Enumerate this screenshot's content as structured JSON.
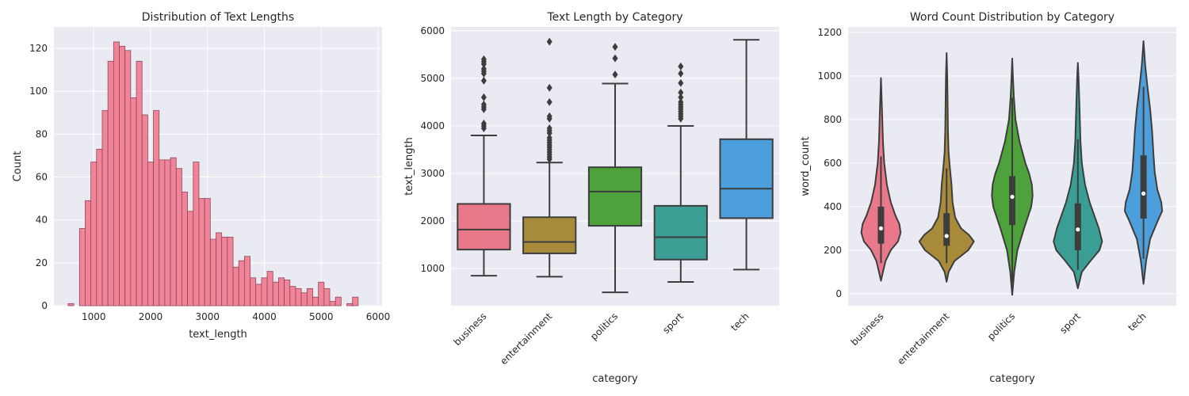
{
  "colors": {
    "background": "#eaeaf2",
    "grid": "#ffffff",
    "hist_fill": "#f2849a",
    "hist_edge": "#8a4a58",
    "box_edge": "#3d3d3d",
    "categories": [
      "#e8788a",
      "#a88a3b",
      "#4ea23c",
      "#3b9e95",
      "#4d9fdb"
    ]
  },
  "chart_data": [
    {
      "type": "histogram",
      "title": "Distribution of Text Lengths",
      "xlabel": "text_length",
      "ylabel": "Count",
      "xlim": [
        300,
        6070
      ],
      "ylim": [
        0,
        130
      ],
      "xticks": [
        1000,
        2000,
        3000,
        4000,
        5000,
        6000
      ],
      "yticks": [
        0,
        20,
        40,
        60,
        80,
        100,
        120
      ],
      "bin_start": 550,
      "bin_width": 100,
      "counts": [
        1,
        0,
        36,
        49,
        67,
        73,
        91,
        114,
        123,
        121,
        119,
        97,
        114,
        89,
        67,
        91,
        68,
        68,
        69,
        64,
        53,
        44,
        67,
        50,
        50,
        31,
        34,
        32,
        32,
        18,
        21,
        23,
        13,
        10,
        13,
        16,
        11,
        13,
        12,
        9,
        8,
        6,
        8,
        4,
        11,
        8,
        2,
        4,
        0,
        1,
        4
      ]
    },
    {
      "type": "box",
      "title": "Text Length by Category",
      "xlabel": "category",
      "ylabel": "text_length",
      "ylim": [
        220,
        6080
      ],
      "yticks": [
        1000,
        2000,
        3000,
        4000,
        5000,
        6000
      ],
      "categories": [
        "business",
        "entertainment",
        "politics",
        "sport",
        "tech"
      ],
      "boxes": [
        {
          "whislo": 850,
          "q1": 1400,
          "med": 1820,
          "q3": 2360,
          "whishi": 3800,
          "fliers": [
            3950,
            4000,
            4050,
            4350,
            4400,
            4450,
            4600,
            4950,
            5100,
            5150,
            5200,
            5300,
            5350,
            5400
          ]
        },
        {
          "whislo": 830,
          "q1": 1320,
          "med": 1560,
          "q3": 2080,
          "whishi": 3230,
          "fliers": [
            3300,
            3350,
            3400,
            3450,
            3500,
            3550,
            3600,
            3650,
            3700,
            3750,
            3850,
            3900,
            3950,
            4150,
            4200,
            4500,
            4800,
            5770
          ]
        },
        {
          "whislo": 500,
          "q1": 1900,
          "med": 2620,
          "q3": 3130,
          "whishi": 4890,
          "fliers": [
            5080,
            5420,
            5660
          ]
        },
        {
          "whislo": 720,
          "q1": 1190,
          "med": 1660,
          "q3": 2320,
          "whishi": 4000,
          "fliers": [
            4150,
            4200,
            4250,
            4300,
            4350,
            4400,
            4450,
            4500,
            4600,
            4700,
            4900,
            5100,
            5250
          ]
        },
        {
          "whislo": 980,
          "q1": 2060,
          "med": 2680,
          "q3": 3720,
          "whishi": 5810,
          "fliers": []
        }
      ]
    },
    {
      "type": "violin",
      "title": "Word Count Distribution by Category",
      "xlabel": "category",
      "ylabel": "word_count",
      "ylim": [
        -55,
        1225
      ],
      "yticks": [
        0,
        200,
        400,
        600,
        800,
        1000,
        1200
      ],
      "categories": [
        "business",
        "entertainment",
        "politics",
        "sport",
        "tech"
      ],
      "violins": [
        {
          "min": 60,
          "max": 990,
          "q1": 230,
          "med": 300,
          "q3": 400,
          "whislo": 140,
          "whishi": 630,
          "density": [
            [
              60,
              0.0
            ],
            [
              100,
              0.06
            ],
            [
              150,
              0.14
            ],
            [
              200,
              0.3
            ],
            [
              240,
              0.52
            ],
            [
              280,
              0.6
            ],
            [
              320,
              0.56
            ],
            [
              360,
              0.44
            ],
            [
              420,
              0.3
            ],
            [
              500,
              0.18
            ],
            [
              600,
              0.1
            ],
            [
              700,
              0.06
            ],
            [
              800,
              0.04
            ],
            [
              900,
              0.02
            ],
            [
              990,
              0.0
            ]
          ]
        },
        {
          "min": 55,
          "max": 1105,
          "q1": 220,
          "med": 265,
          "q3": 370,
          "whislo": 140,
          "whishi": 575,
          "density": [
            [
              55,
              0.0
            ],
            [
              100,
              0.06
            ],
            [
              150,
              0.24
            ],
            [
              200,
              0.66
            ],
            [
              240,
              0.83
            ],
            [
              270,
              0.68
            ],
            [
              300,
              0.44
            ],
            [
              350,
              0.26
            ],
            [
              420,
              0.18
            ],
            [
              500,
              0.15
            ],
            [
              580,
              0.1
            ],
            [
              650,
              0.06
            ],
            [
              750,
              0.04
            ],
            [
              900,
              0.03
            ],
            [
              1000,
              0.02
            ],
            [
              1105,
              0.0
            ]
          ]
        },
        {
          "min": -5,
          "max": 1080,
          "q1": 315,
          "med": 445,
          "q3": 540,
          "whislo": 50,
          "whishi": 900,
          "density": [
            [
              -5,
              0.0
            ],
            [
              100,
              0.06
            ],
            [
              200,
              0.16
            ],
            [
              300,
              0.36
            ],
            [
              400,
              0.58
            ],
            [
              450,
              0.62
            ],
            [
              500,
              0.6
            ],
            [
              550,
              0.52
            ],
            [
              600,
              0.4
            ],
            [
              700,
              0.22
            ],
            [
              800,
              0.1
            ],
            [
              900,
              0.05
            ],
            [
              1000,
              0.02
            ],
            [
              1080,
              0.0
            ]
          ]
        },
        {
          "min": 25,
          "max": 1060,
          "q1": 200,
          "med": 295,
          "q3": 415,
          "whislo": 110,
          "whishi": 710,
          "density": [
            [
              25,
              0.0
            ],
            [
              100,
              0.12
            ],
            [
              150,
              0.38
            ],
            [
              200,
              0.66
            ],
            [
              240,
              0.74
            ],
            [
              300,
              0.64
            ],
            [
              360,
              0.5
            ],
            [
              420,
              0.36
            ],
            [
              500,
              0.22
            ],
            [
              600,
              0.12
            ],
            [
              700,
              0.08
            ],
            [
              800,
              0.06
            ],
            [
              900,
              0.04
            ],
            [
              1000,
              0.02
            ],
            [
              1060,
              0.0
            ]
          ]
        },
        {
          "min": 45,
          "max": 1160,
          "q1": 345,
          "med": 460,
          "q3": 635,
          "whislo": 160,
          "whishi": 950,
          "density": [
            [
              45,
              0.0
            ],
            [
              150,
              0.08
            ],
            [
              250,
              0.2
            ],
            [
              330,
              0.42
            ],
            [
              380,
              0.57
            ],
            [
              420,
              0.54
            ],
            [
              480,
              0.42
            ],
            [
              560,
              0.34
            ],
            [
              650,
              0.3
            ],
            [
              750,
              0.26
            ],
            [
              850,
              0.2
            ],
            [
              950,
              0.12
            ],
            [
              1050,
              0.05
            ],
            [
              1160,
              0.0
            ]
          ]
        }
      ]
    }
  ]
}
